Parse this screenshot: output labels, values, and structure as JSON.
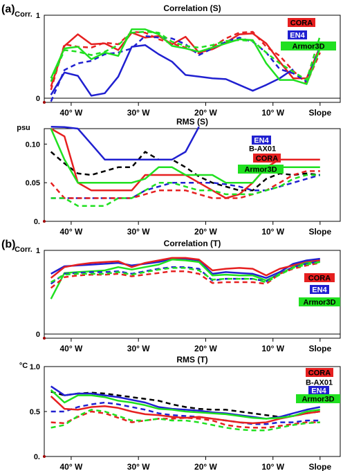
{
  "panel_labels": [
    "(a)",
    "(b)"
  ],
  "chart_data": [
    {
      "type": "line",
      "title": "Correlation (S)",
      "ylabel": "Corr.",
      "x_ticks": [
        "40° W",
        "30° W",
        "20° W",
        "10° W",
        "Slope"
      ],
      "x_tick_pos": [
        1.5,
        6.5,
        11.5,
        16.5,
        20
      ],
      "xlim": [
        -0.5,
        21.5
      ],
      "ylim": [
        -0.05,
        1.0
      ],
      "y_ticks": [
        {
          "v": 0,
          "label": "0"
        },
        {
          "v": 1,
          "label": "1"
        }
      ],
      "zero_line": true,
      "legend": [
        {
          "label": "CORA",
          "bg": "#e62020",
          "fg": "#000000"
        },
        {
          "label": "EN4",
          "bg": "#2020d0",
          "fg": "#ffffff"
        },
        {
          "label": "Armor3D",
          "bg": "#20e020",
          "fg": "#000000"
        }
      ],
      "series": [
        {
          "name": "CORA",
          "color": "#e62020",
          "dash": false,
          "values": [
            0.14,
            0.63,
            0.77,
            0.65,
            0.66,
            0.58,
            0.79,
            0.73,
            0.75,
            0.65,
            0.74,
            0.55,
            0.59,
            0.67,
            0.77,
            0.78,
            0.66,
            0.44,
            0.24,
            0.24,
            0.62
          ]
        },
        {
          "name": "CORA",
          "color": "#e62020",
          "dash": true,
          "values": [
            0.1,
            0.65,
            0.62,
            0.61,
            0.67,
            0.65,
            0.8,
            0.79,
            0.71,
            0.66,
            0.61,
            0.54,
            0.62,
            0.72,
            0.79,
            0.8,
            0.62,
            0.51,
            0.33,
            0.18,
            0.55
          ]
        },
        {
          "name": "EN4",
          "color": "#2020d0",
          "dash": false,
          "values": [
            0.04,
            0.31,
            0.27,
            0.03,
            0.06,
            0.26,
            0.62,
            0.64,
            0.53,
            0.44,
            0.28,
            0.26,
            0.24,
            0.23,
            0.16,
            0.09,
            0.16,
            0.24,
            0.35
          ]
        },
        {
          "name": "EN4",
          "color": "#2020d0",
          "dash": true,
          "values": [
            -0.04,
            0.34,
            0.42,
            0.45,
            0.53,
            0.55,
            0.6,
            0.75,
            0.73,
            0.72,
            0.65,
            0.52,
            0.6,
            0.68,
            0.73,
            0.68,
            0.55,
            0.35,
            0.3,
            0.2,
            0.62
          ]
        },
        {
          "name": "Armor3D",
          "color": "#20e020",
          "dash": false,
          "values": [
            0.24,
            0.6,
            0.62,
            0.47,
            0.55,
            0.51,
            0.83,
            0.83,
            0.77,
            0.63,
            0.6,
            0.56,
            0.61,
            0.66,
            0.71,
            0.7,
            0.42,
            0.22,
            0.22,
            0.17,
            0.6
          ]
        },
        {
          "name": "Armor3D",
          "color": "#20e020",
          "dash": true,
          "values": [
            0.2,
            0.58,
            0.56,
            0.52,
            0.56,
            0.64,
            0.79,
            0.8,
            0.79,
            0.68,
            0.63,
            0.61,
            0.64,
            0.69,
            0.7,
            0.69,
            0.55,
            0.42,
            0.32,
            0.22,
            0.75
          ]
        }
      ]
    },
    {
      "type": "line",
      "title": "RMS (S)",
      "ylabel": "psu",
      "x_ticks": [
        "40° W",
        "30° W",
        "20° W",
        "10° W",
        "Slope"
      ],
      "x_tick_pos": [
        1.5,
        6.5,
        11.5,
        16.5,
        20
      ],
      "xlim": [
        -0.5,
        21.5
      ],
      "ylim": [
        0,
        0.12
      ],
      "y_ticks": [
        {
          "v": 0,
          "label": "0."
        },
        {
          "v": 0.05,
          "label": "0.05"
        },
        {
          "v": 0.1,
          "label": "0.10"
        }
      ],
      "zero_line": false,
      "legend": [
        {
          "label": "EN4",
          "bg": "#2020d0",
          "fg": "#ffffff"
        },
        {
          "label": "B-AX01",
          "bg": "",
          "fg": "#000000"
        },
        {
          "label": "CORA",
          "bg": "#e62020",
          "fg": "#000000"
        },
        {
          "label": "Armor3D",
          "bg": "#20e020",
          "fg": "#000000"
        }
      ],
      "series": [
        {
          "name": "B-AX01",
          "color": "#000000",
          "dash": true,
          "values": [
            0.09,
            0.075,
            0.062,
            0.06,
            0.065,
            0.07,
            0.07,
            0.09,
            0.08,
            0.08,
            0.07,
            0.058,
            0.05,
            0.045,
            0.04,
            0.04,
            0.055,
            0.062,
            0.06,
            0.062,
            0.06
          ]
        },
        {
          "name": "EN4",
          "color": "#2020d0",
          "dash": false,
          "values": [
            0.125,
            0.122,
            0.12,
            0.1,
            0.08,
            0.08,
            0.08,
            0.08,
            0.08,
            0.08,
            0.09,
            0.13
          ]
        },
        {
          "name": "EN4",
          "color": "#2020d0",
          "dash": true,
          "values": [
            0.03,
            0.03,
            0.03,
            0.03,
            0.03,
            0.03,
            0.03,
            0.04,
            0.045,
            0.05,
            0.05,
            0.05,
            0.05,
            0.048,
            0.045,
            0.04,
            0.04,
            0.045,
            0.05,
            0.055,
            0.06
          ]
        },
        {
          "name": "CORA",
          "color": "#e62020",
          "dash": false,
          "values": [
            0.12,
            0.11,
            0.05,
            0.04,
            0.04,
            0.04,
            0.04,
            0.06,
            0.06,
            0.06,
            0.06,
            0.05,
            0.04,
            0.03,
            0.035,
            0.05,
            0.07,
            0.08,
            0.08,
            0.08,
            0.08
          ]
        },
        {
          "name": "CORA",
          "color": "#e62020",
          "dash": true,
          "values": [
            0.05,
            0.03,
            0.03,
            0.03,
            0.03,
            0.03,
            0.03,
            0.035,
            0.04,
            0.04,
            0.04,
            0.035,
            0.03,
            0.03,
            0.03,
            0.035,
            0.04,
            0.05,
            0.06,
            0.065,
            0.065
          ]
        },
        {
          "name": "Armor3D",
          "color": "#20e020",
          "dash": false,
          "values": [
            0.12,
            0.08,
            0.05,
            0.05,
            0.05,
            0.05,
            0.05,
            0.055,
            0.07,
            0.07,
            0.06,
            0.06,
            0.06,
            0.05,
            0.05,
            0.05,
            0.07,
            0.07,
            0.07,
            0.07,
            0.07
          ]
        },
        {
          "name": "Armor3D",
          "color": "#20e020",
          "dash": true,
          "values": [
            0.03,
            0.03,
            0.02,
            0.02,
            0.02,
            0.03,
            0.03,
            0.04,
            0.05,
            0.05,
            0.045,
            0.04,
            0.04,
            0.035,
            0.035,
            0.035,
            0.04,
            0.045,
            0.055,
            0.06,
            0.06
          ]
        }
      ]
    },
    {
      "type": "line",
      "title": "Correlation (T)",
      "ylabel": "Corr.",
      "x_ticks": [
        "40° W",
        "30° W",
        "20° W",
        "10° W",
        "Slope"
      ],
      "x_tick_pos": [
        1.5,
        6.5,
        11.5,
        16.5,
        20
      ],
      "xlim": [
        -0.5,
        21.5
      ],
      "ylim": [
        -0.05,
        1.0
      ],
      "y_ticks": [
        {
          "v": 0,
          "label": "0"
        },
        {
          "v": 1,
          "label": "1"
        }
      ],
      "zero_line": true,
      "legend": [
        {
          "label": "CORA",
          "bg": "#e62020",
          "fg": "#000000"
        },
        {
          "label": "EN4",
          "bg": "#2020d0",
          "fg": "#ffffff"
        },
        {
          "label": "Armor3D",
          "bg": "#20e020",
          "fg": "#000000"
        }
      ],
      "series": [
        {
          "name": "EN4",
          "color": "#2020d0",
          "dash": false,
          "values": [
            0.72,
            0.81,
            0.82,
            0.83,
            0.84,
            0.85,
            0.82,
            0.84,
            0.86,
            0.9,
            0.9,
            0.88,
            0.72,
            0.74,
            0.73,
            0.72,
            0.67,
            0.74,
            0.84,
            0.88,
            0.9
          ]
        },
        {
          "name": "CORA",
          "color": "#e62020",
          "dash": false,
          "values": [
            0.67,
            0.8,
            0.83,
            0.85,
            0.86,
            0.87,
            0.8,
            0.85,
            0.88,
            0.91,
            0.91,
            0.89,
            0.76,
            0.78,
            0.79,
            0.78,
            0.7,
            0.78,
            0.82,
            0.86,
            0.88
          ]
        },
        {
          "name": "Armor3D",
          "color": "#20e020",
          "dash": false,
          "values": [
            0.42,
            0.73,
            0.74,
            0.75,
            0.76,
            0.8,
            0.77,
            0.8,
            0.83,
            0.89,
            0.88,
            0.86,
            0.7,
            0.71,
            0.7,
            0.7,
            0.64,
            0.72,
            0.8,
            0.85,
            0.86
          ]
        },
        {
          "name": "EN4",
          "color": "#2020d0",
          "dash": true,
          "values": [
            0.6,
            0.72,
            0.73,
            0.74,
            0.74,
            0.75,
            0.72,
            0.75,
            0.78,
            0.8,
            0.8,
            0.78,
            0.64,
            0.66,
            0.66,
            0.66,
            0.63,
            0.72,
            0.8,
            0.84,
            0.87
          ]
        },
        {
          "name": "CORA",
          "color": "#e62020",
          "dash": true,
          "values": [
            0.55,
            0.68,
            0.7,
            0.71,
            0.71,
            0.72,
            0.69,
            0.71,
            0.73,
            0.75,
            0.75,
            0.72,
            0.61,
            0.62,
            0.62,
            0.62,
            0.6,
            0.72,
            0.78,
            0.82,
            0.85
          ]
        },
        {
          "name": "Armor3D",
          "color": "#20e020",
          "dash": true,
          "values": [
            0.62,
            0.71,
            0.72,
            0.72,
            0.72,
            0.74,
            0.71,
            0.74,
            0.77,
            0.79,
            0.79,
            0.76,
            0.65,
            0.66,
            0.66,
            0.66,
            0.62,
            0.71,
            0.79,
            0.83,
            0.86
          ]
        }
      ]
    },
    {
      "type": "line",
      "title": "RMS (T)",
      "ylabel": "°C",
      "x_ticks": [
        "40° W",
        "30° W",
        "20° W",
        "10° W",
        "Slope"
      ],
      "x_tick_pos": [
        1.5,
        6.5,
        11.5,
        16.5,
        20
      ],
      "xlim": [
        -0.5,
        21.5
      ],
      "ylim": [
        0,
        1.0
      ],
      "y_ticks": [
        {
          "v": 0,
          "label": "0."
        },
        {
          "v": 0.5,
          "label": "0.5"
        },
        {
          "v": 1.0,
          "label": "1.0"
        }
      ],
      "zero_line": false,
      "legend": [
        {
          "label": "CORA",
          "bg": "#e62020",
          "fg": "#000000"
        },
        {
          "label": "B-AX01",
          "bg": "",
          "fg": "#000000"
        },
        {
          "label": "EN4",
          "bg": "#2020d0",
          "fg": "#ffffff"
        },
        {
          "label": "Armor3D",
          "bg": "#20e020",
          "fg": "#000000"
        }
      ],
      "series": [
        {
          "name": "B-AX01",
          "color": "#000000",
          "dash": true,
          "values": [
            0.72,
            0.68,
            0.7,
            0.71,
            0.7,
            0.68,
            0.66,
            0.64,
            0.62,
            0.58,
            0.55,
            0.53,
            0.52,
            0.52,
            0.5,
            0.48,
            0.46,
            0.44,
            0.45,
            0.48,
            0.5
          ]
        },
        {
          "name": "EN4",
          "color": "#2020d0",
          "dash": false,
          "values": [
            0.78,
            0.68,
            0.7,
            0.7,
            0.68,
            0.66,
            0.63,
            0.6,
            0.55,
            0.53,
            0.52,
            0.51,
            0.49,
            0.48,
            0.46,
            0.44,
            0.42,
            0.44,
            0.48,
            0.52,
            0.55
          ]
        },
        {
          "name": "EN4",
          "color": "#2020d0",
          "dash": true,
          "values": [
            0.5,
            0.5,
            0.55,
            0.58,
            0.6,
            0.58,
            0.55,
            0.52,
            0.48,
            0.46,
            0.45,
            0.44,
            0.42,
            0.4,
            0.38,
            0.36,
            0.36,
            0.38,
            0.38,
            0.4,
            0.4
          ]
        },
        {
          "name": "CORA",
          "color": "#e62020",
          "dash": false,
          "values": [
            0.67,
            0.53,
            0.52,
            0.55,
            0.56,
            0.54,
            0.5,
            0.47,
            0.46,
            0.44,
            0.43,
            0.44,
            0.42,
            0.4,
            0.38,
            0.37,
            0.38,
            0.42,
            0.45,
            0.48,
            0.5
          ]
        },
        {
          "name": "CORA",
          "color": "#e62020",
          "dash": true,
          "values": [
            0.38,
            0.37,
            0.44,
            0.5,
            0.48,
            0.43,
            0.38,
            0.4,
            0.42,
            0.42,
            0.43,
            0.42,
            0.4,
            0.35,
            0.33,
            0.32,
            0.32,
            0.34,
            0.36,
            0.38,
            0.38
          ]
        },
        {
          "name": "Armor3D",
          "color": "#20e020",
          "dash": false,
          "values": [
            0.74,
            0.6,
            0.68,
            0.68,
            0.66,
            0.62,
            0.6,
            0.57,
            0.53,
            0.52,
            0.5,
            0.49,
            0.48,
            0.47,
            0.45,
            0.43,
            0.42,
            0.43,
            0.45,
            0.5,
            0.52
          ]
        },
        {
          "name": "Armor3D",
          "color": "#20e020",
          "dash": true,
          "values": [
            0.32,
            0.35,
            0.45,
            0.52,
            0.5,
            0.45,
            0.4,
            0.4,
            0.42,
            0.4,
            0.4,
            0.38,
            0.35,
            0.32,
            0.3,
            0.29,
            0.29,
            0.32,
            0.35,
            0.37,
            0.38
          ]
        }
      ]
    }
  ]
}
